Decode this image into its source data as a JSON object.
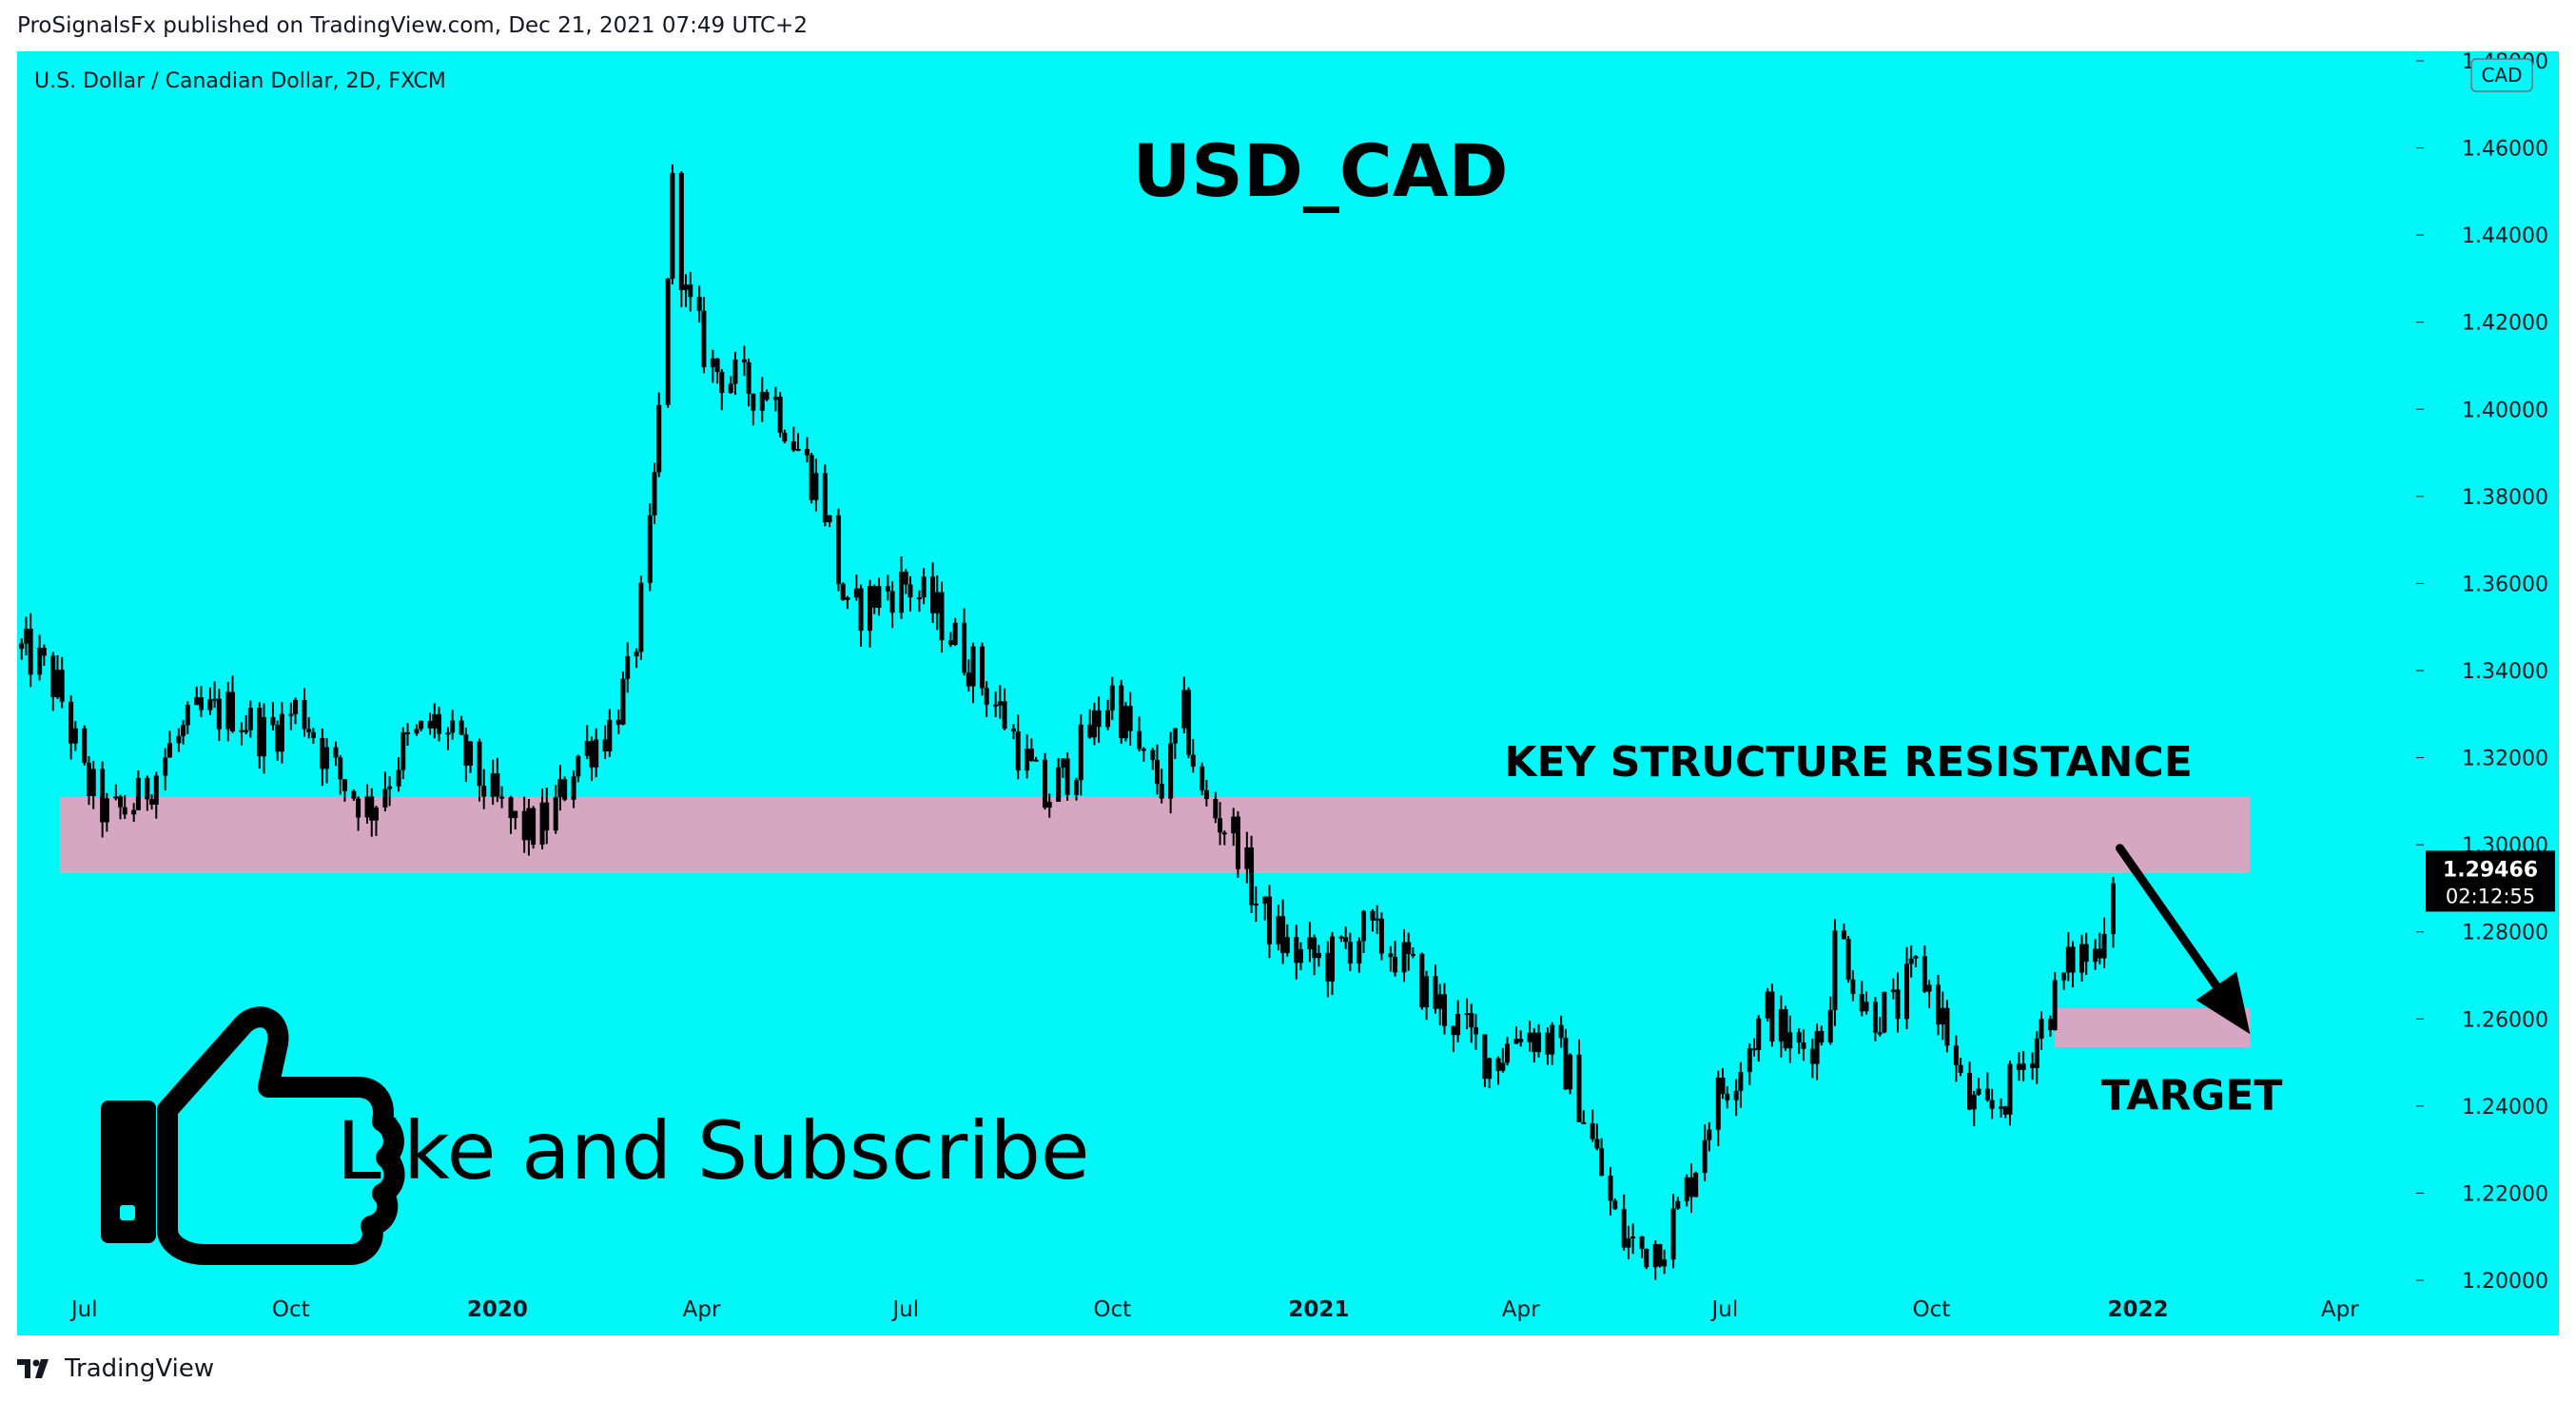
{
  "header": {
    "published_line": "ProSignalsFx published on TradingView.com, Dec 21, 2021 07:49 UTC+2"
  },
  "chart_data": {
    "type": "candlestick",
    "title": "USD_CAD",
    "symbol_line": "U.S. Dollar / Canadian Dollar, 2D, FXCM",
    "currency_badge": "CAD",
    "background_color": "#00f7f7",
    "candle_color": "#000000",
    "zone_color": "#d6a7c2",
    "ylim": [
      1.2,
      1.48
    ],
    "y_ticks": [
      1.2,
      1.22,
      1.24,
      1.26,
      1.28,
      1.3,
      1.32,
      1.34,
      1.36,
      1.38,
      1.4,
      1.42,
      1.44,
      1.46,
      1.48
    ],
    "y_tick_labels": [
      "1.20000",
      "1.22000",
      "1.24000",
      "1.26000",
      "1.28000",
      "1.30000",
      "1.32000",
      "1.34000",
      "1.36000",
      "1.38000",
      "1.40000",
      "1.42000",
      "1.44000",
      "1.46000",
      "1.48000"
    ],
    "x_range": [
      "2019-06-01",
      "2022-05-05"
    ],
    "x_ticks": [
      {
        "date": "2019-07-01",
        "label": "Jul",
        "bold": false
      },
      {
        "date": "2019-10-01",
        "label": "Oct",
        "bold": false
      },
      {
        "date": "2020-01-01",
        "label": "2020",
        "bold": true
      },
      {
        "date": "2020-04-01",
        "label": "Apr",
        "bold": false
      },
      {
        "date": "2020-07-01",
        "label": "Jul",
        "bold": false
      },
      {
        "date": "2020-10-01",
        "label": "Oct",
        "bold": false
      },
      {
        "date": "2021-01-01",
        "label": "2021",
        "bold": true
      },
      {
        "date": "2021-04-01",
        "label": "Apr",
        "bold": false
      },
      {
        "date": "2021-07-01",
        "label": "Jul",
        "bold": false
      },
      {
        "date": "2021-10-01",
        "label": "Oct",
        "bold": false
      },
      {
        "date": "2022-01-01",
        "label": "2022",
        "bold": true
      },
      {
        "date": "2022-04-01",
        "label": "Apr",
        "bold": false
      }
    ],
    "price_line": [
      [
        "2019-06-01",
        1.345
      ],
      [
        "2019-06-10",
        1.342
      ],
      [
        "2019-06-20",
        1.335
      ],
      [
        "2019-07-01",
        1.315
      ],
      [
        "2019-07-12",
        1.306
      ],
      [
        "2019-07-25",
        1.31
      ],
      [
        "2019-08-08",
        1.322
      ],
      [
        "2019-08-20",
        1.329
      ],
      [
        "2019-09-05",
        1.331
      ],
      [
        "2019-09-20",
        1.325
      ],
      [
        "2019-10-05",
        1.332
      ],
      [
        "2019-10-20",
        1.317
      ],
      [
        "2019-11-05",
        1.308
      ],
      [
        "2019-11-20",
        1.322
      ],
      [
        "2019-12-05",
        1.328
      ],
      [
        "2019-12-20",
        1.318
      ],
      [
        "2020-01-05",
        1.306
      ],
      [
        "2020-01-15",
        1.303
      ],
      [
        "2020-01-25",
        1.306
      ],
      [
        "2020-02-05",
        1.32
      ],
      [
        "2020-02-20",
        1.327
      ],
      [
        "2020-03-01",
        1.34
      ],
      [
        "2020-03-09",
        1.37
      ],
      [
        "2020-03-12",
        1.39
      ],
      [
        "2020-03-19",
        1.45
      ],
      [
        "2020-03-25",
        1.425
      ],
      [
        "2020-04-05",
        1.41
      ],
      [
        "2020-04-20",
        1.405
      ],
      [
        "2020-05-01",
        1.405
      ],
      [
        "2020-05-15",
        1.39
      ],
      [
        "2020-05-25",
        1.38
      ],
      [
        "2020-06-05",
        1.352
      ],
      [
        "2020-06-20",
        1.358
      ],
      [
        "2020-07-01",
        1.36
      ],
      [
        "2020-07-15",
        1.353
      ],
      [
        "2020-08-01",
        1.34
      ],
      [
        "2020-08-15",
        1.328
      ],
      [
        "2020-09-01",
        1.31
      ],
      [
        "2020-09-15",
        1.32
      ],
      [
        "2020-10-01",
        1.335
      ],
      [
        "2020-10-15",
        1.318
      ],
      [
        "2020-10-25",
        1.313
      ],
      [
        "2020-11-01",
        1.332
      ],
      [
        "2020-11-10",
        1.31
      ],
      [
        "2020-11-25",
        1.302
      ],
      [
        "2020-12-05",
        1.285
      ],
      [
        "2020-12-20",
        1.275
      ],
      [
        "2021-01-05",
        1.273
      ],
      [
        "2021-01-20",
        1.28
      ],
      [
        "2021-02-05",
        1.275
      ],
      [
        "2021-02-20",
        1.265
      ],
      [
        "2021-03-05",
        1.258
      ],
      [
        "2021-03-20",
        1.25
      ],
      [
        "2021-04-01",
        1.258
      ],
      [
        "2021-04-15",
        1.254
      ],
      [
        "2021-04-25",
        1.245
      ],
      [
        "2021-05-05",
        1.228
      ],
      [
        "2021-05-15",
        1.21
      ],
      [
        "2021-05-25",
        1.207
      ],
      [
        "2021-06-05",
        1.21
      ],
      [
        "2021-06-15",
        1.222
      ],
      [
        "2021-06-25",
        1.24
      ],
      [
        "2021-07-05",
        1.248
      ],
      [
        "2021-07-20",
        1.262
      ],
      [
        "2021-08-01",
        1.252
      ],
      [
        "2021-08-15",
        1.258
      ],
      [
        "2021-08-20",
        1.282
      ],
      [
        "2021-09-01",
        1.262
      ],
      [
        "2021-09-15",
        1.262
      ],
      [
        "2021-09-25",
        1.272
      ],
      [
        "2021-10-05",
        1.262
      ],
      [
        "2021-10-15",
        1.242
      ],
      [
        "2021-10-25",
        1.237
      ],
      [
        "2021-11-05",
        1.244
      ],
      [
        "2021-11-15",
        1.254
      ],
      [
        "2021-11-25",
        1.265
      ],
      [
        "2021-12-05",
        1.276
      ],
      [
        "2021-12-12",
        1.273
      ],
      [
        "2021-12-18",
        1.285
      ],
      [
        "2021-12-21",
        1.2947
      ]
    ],
    "zones": [
      {
        "name": "key-structure-resistance",
        "from_date": "2019-06-20",
        "to_date": "2022-02-20",
        "y_from": 1.2935,
        "y_to": 1.311
      },
      {
        "name": "target-zone",
        "from_date": "2021-11-25",
        "to_date": "2022-02-20",
        "y_from": 1.2535,
        "y_to": 1.2625
      }
    ],
    "annotations": {
      "resistance_label": {
        "text": "KEY STRUCTURE  RESISTANCE",
        "date": "2021-08-25",
        "y": 1.3192
      },
      "target_label": {
        "text": "TARGET",
        "date": "2022-01-25",
        "y": 1.2427
      },
      "arrow": {
        "from_date": "2021-12-24",
        "from_y": 1.2992,
        "to_date": "2022-02-20",
        "to_y": 1.2565
      }
    },
    "last_price": {
      "value": "1.29466",
      "countdown": "02:12:55"
    },
    "promo_text": "Like and Subscribe"
  },
  "footer": {
    "brand": "TradingView"
  },
  "icons": {
    "thumbs_up": "thumbs-up-icon",
    "logo": "tradingview-logo-icon"
  }
}
